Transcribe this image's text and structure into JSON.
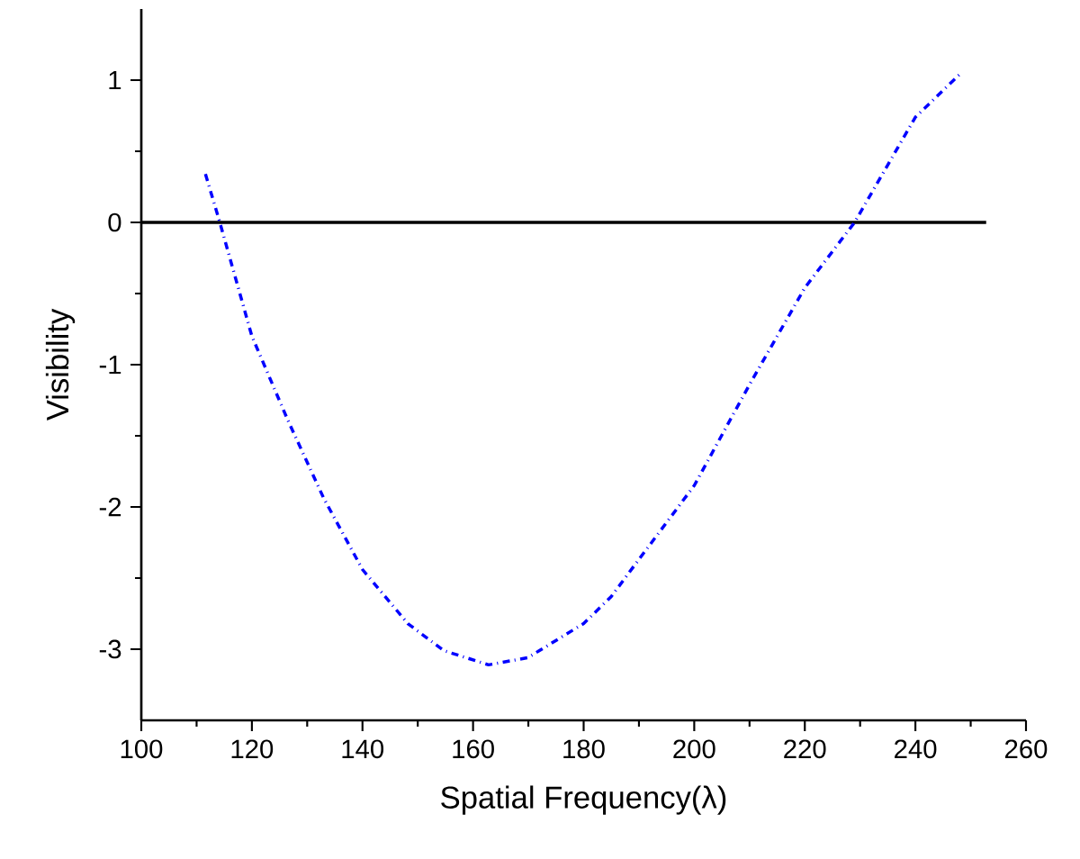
{
  "chart_data": {
    "type": "line",
    "xlabel": "Spatial Frequency(λ)",
    "ylabel": "Visibility",
    "xlim": [
      100,
      260
    ],
    "xticks": [
      100,
      120,
      140,
      160,
      180,
      200,
      220,
      240,
      260
    ],
    "ylim": [
      -3.5,
      1.5
    ],
    "yticks": [
      -3,
      -2,
      -1,
      0,
      1
    ],
    "series": [
      {
        "color": "#000000",
        "line_style": "solid",
        "x": [
          100,
          252.8
        ],
        "values": [
          0,
          0
        ]
      },
      {
        "color": "#0000ff",
        "line_style": "dashdot",
        "x": [
          111.6,
          114.2,
          120,
          126.5,
          133,
          140,
          148.2,
          154.7,
          162.8,
          169.9,
          172,
          180,
          185,
          189.4,
          200,
          210,
          220,
          229,
          240,
          248
        ],
        "values": [
          0.34,
          0,
          -0.8,
          -1.39,
          -1.94,
          -2.44,
          -2.82,
          -3.01,
          -3.11,
          -3.06,
          -3.01,
          -2.82,
          -2.63,
          -2.4,
          -1.85,
          -1.14,
          -0.46,
          0,
          0.74,
          1.04
        ]
      }
    ]
  }
}
